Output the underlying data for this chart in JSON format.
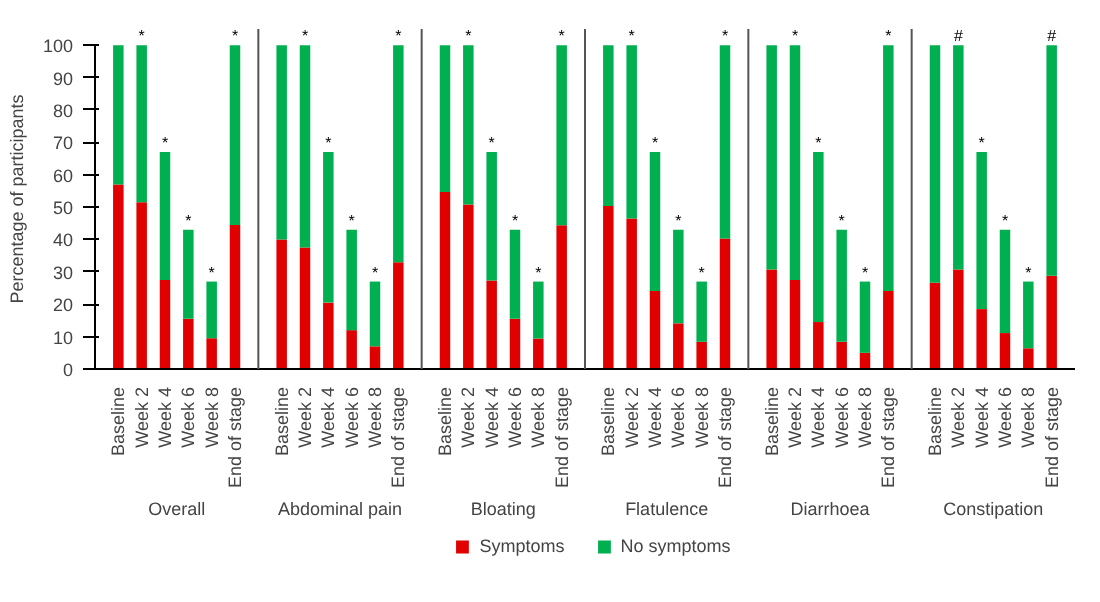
{
  "chart_data": {
    "type": "bar",
    "stacked": true,
    "ylabel": "Percentage of participants",
    "categories": [
      "Baseline",
      "Week 2",
      "Week 4",
      "Week 6",
      "Week 8",
      "End of stage",
      "Baseline",
      "Week 2",
      "Week 4",
      "Week 6",
      "Week 8",
      "End of stage",
      "Baseline",
      "Week 2",
      "Week 4",
      "Week 6",
      "Week 8",
      "End of stage",
      "Baseline",
      "Week 2",
      "Week 4",
      "Week 6",
      "Week 8",
      "End of stage",
      "Baseline",
      "Week 2",
      "Week 4",
      "Week 6",
      "Week 8",
      "End of stage",
      "Baseline",
      "Week 2",
      "Week 4",
      "Week 6",
      "Week 8",
      "End of stage"
    ],
    "series": [
      {
        "name": "Symptoms",
        "color": "#e00000",
        "values": [
          57,
          51.5,
          27.5,
          15.5,
          9.5,
          44.5,
          40,
          37.5,
          20.5,
          12,
          7,
          33,
          54.7,
          50.8,
          27.3,
          15.5,
          9.4,
          44.4,
          50.3,
          46.5,
          24.1,
          14.1,
          8.4,
          40.3,
          30.7,
          27.5,
          14.5,
          8.4,
          5,
          24.1,
          26.6,
          30.7,
          18.5,
          11.1,
          6.4,
          28.8
        ]
      },
      {
        "name": "No symptoms",
        "color": "#00b050",
        "values": [
          43,
          48.5,
          39.5,
          27.5,
          17.5,
          55.5,
          60,
          62.5,
          46.5,
          31,
          20,
          67,
          45.3,
          49.2,
          39.7,
          27.5,
          17.6,
          55.6,
          49.7,
          53.5,
          42.9,
          28.9,
          18.6,
          59.7,
          69.3,
          72.5,
          52.5,
          34.6,
          22,
          75.9,
          73.4,
          69.3,
          48.5,
          31.9,
          20.6,
          71.2
        ],
        "value_labels": [
          null,
          "*",
          "*",
          "*",
          "*",
          "*",
          null,
          "*",
          "*",
          "*",
          "*",
          "*",
          null,
          "*",
          "*",
          "*",
          "*",
          "*",
          null,
          "*",
          "*",
          "*",
          "*",
          "*",
          null,
          "*",
          "*",
          "*",
          "*",
          "*",
          null,
          "#",
          "*",
          "*",
          "*",
          "#"
        ]
      }
    ],
    "annotations": [
      "Overall",
      "Abdominal pain",
      "Bloating",
      "Flatulence",
      "Diarrhoea",
      "Constipation"
    ],
    "ylim": [
      0,
      100
    ],
    "yticks": [
      0,
      10,
      20,
      30,
      40,
      50,
      60,
      70,
      80,
      90,
      100
    ],
    "grid": false,
    "legend": "bottom"
  }
}
